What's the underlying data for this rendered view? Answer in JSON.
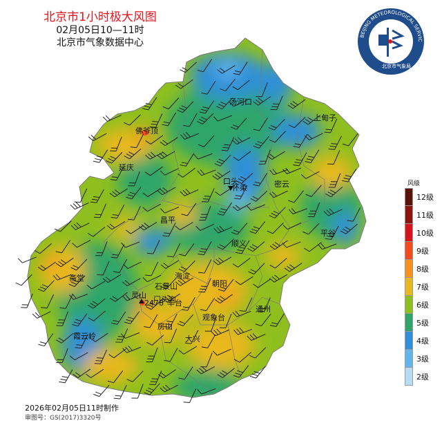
{
  "title": "北京市1小时极大风图",
  "time_range": "02月05日10—11时",
  "agency": "北京市气象数据中心",
  "logo": {
    "ring_text": "BEIJING METEOROLOGICAL SERVICE",
    "name": "北京市气象局"
  },
  "legend": {
    "title": "风级",
    "items": [
      {
        "label": "12级",
        "color": "#5a1208"
      },
      {
        "label": "11级",
        "color": "#8e1410"
      },
      {
        "label": "10级",
        "color": "#d8141a"
      },
      {
        "label": "9级",
        "color": "#f64a1e"
      },
      {
        "label": "8级",
        "color": "#f7901c"
      },
      {
        "label": "7级",
        "color": "#e8b81e"
      },
      {
        "label": "6级",
        "color": "#8fbf1e"
      },
      {
        "label": "5级",
        "color": "#2ea66a"
      },
      {
        "label": "4级",
        "color": "#2f8fd8"
      },
      {
        "label": "3级",
        "color": "#62b6ec"
      },
      {
        "label": "2级",
        "color": "#b6dcf6"
      }
    ]
  },
  "places": {
    "tanghekou": "汤河口",
    "shangdianzi": "上甸子",
    "fotouding": "佛爷顶",
    "yanqing": "延庆",
    "huairou": "怀柔",
    "miyun": "密云",
    "changping": "昌平",
    "shunyi": "顺义",
    "pinggu": "平谷",
    "zhaitang": "斋堂",
    "shijingshan": "石景山",
    "haidian": "海淀",
    "chaoyang": "朝阳",
    "lingshan": "灵山",
    "mentougou": "门头沟",
    "fengtai": "丰台",
    "tongzhou": "通州",
    "guanxiangtai": "观象台",
    "xiayunling": "霞云岭",
    "fangshan": "房山",
    "daxing": "大兴",
    "station_a": "口头",
    "station_b": "2478"
  },
  "footer": {
    "made_at": "2026年02月05日11时制作",
    "approval": "审图号：GS(2017)3320号"
  }
}
